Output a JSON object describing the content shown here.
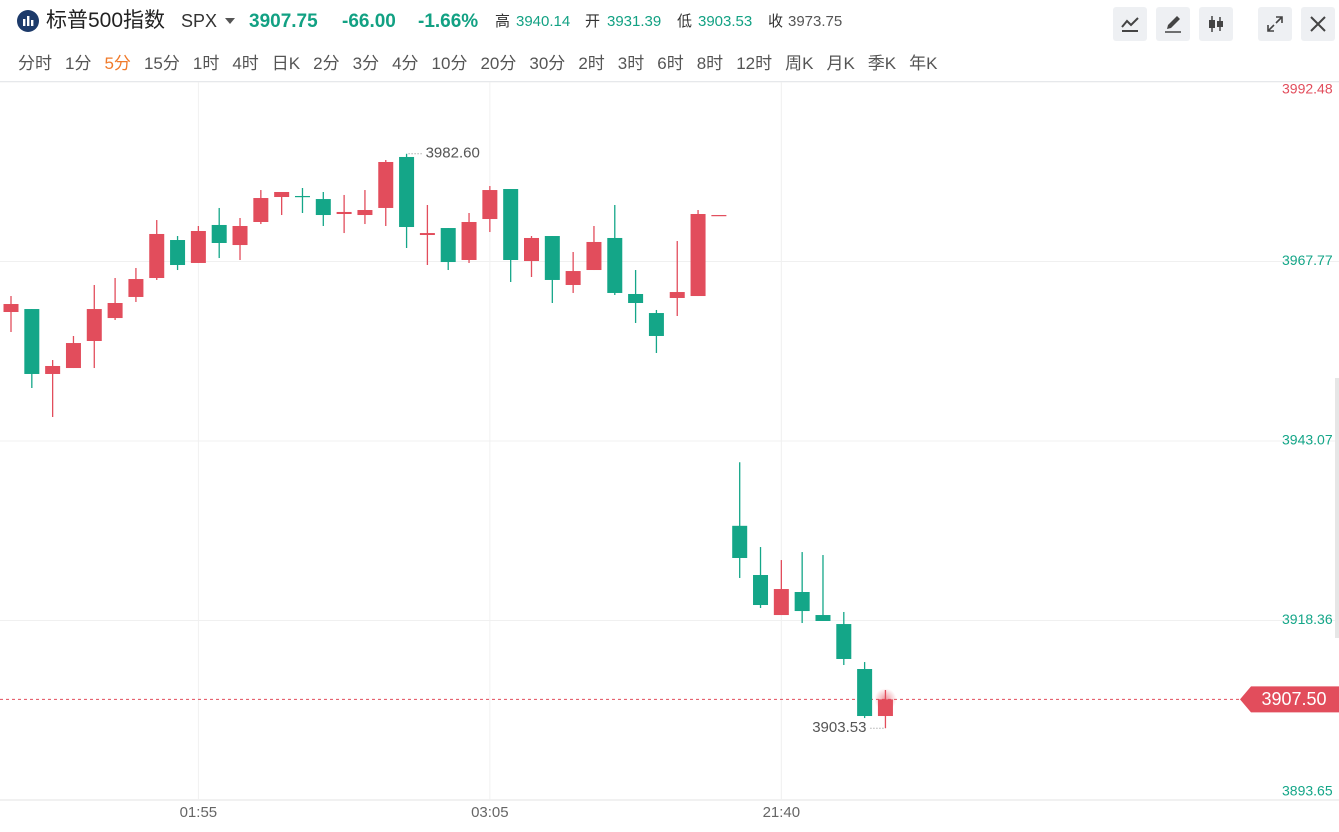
{
  "header": {
    "name": "标普500指数",
    "code": "SPX",
    "price": "3907.75",
    "change": "-66.00",
    "change_pct": "-1.66%",
    "high_label": "高",
    "high": "3940.14",
    "open_label": "开",
    "open": "3931.39",
    "low_label": "低",
    "low": "3903.53",
    "close_label": "收"
  },
  "timeframes": [
    "分时",
    "1分",
    "5分",
    "15分",
    "1时",
    "4时",
    "日K",
    "2分",
    "3分",
    "4分",
    "10分",
    "20分",
    "30分",
    "2时",
    "3时",
    "6时",
    "8时",
    "12时",
    "周K",
    "月K",
    "季K",
    "年K"
  ],
  "active_timeframe": 2,
  "chart_data": {
    "type": "candlestick",
    "categories": [
      null,
      null,
      null,
      null,
      null,
      null,
      null,
      null,
      null,
      "01:55",
      null,
      null,
      null,
      null,
      null,
      null,
      null,
      null,
      null,
      null,
      null,
      null,
      null,
      "03:05",
      null,
      null,
      null,
      null,
      null,
      null,
      null,
      null,
      null,
      null,
      null,
      null,
      null,
      "21:40",
      null,
      null,
      null,
      null,
      null
    ],
    "open": [
      3960.82,
      3961.23,
      3952.29,
      3953.11,
      3956.83,
      3959.99,
      3962.89,
      3965.5,
      3970.73,
      3967.57,
      3972.8,
      3970.04,
      3973.21,
      3976.65,
      3976.79,
      3976.37,
      3974.31,
      3974.17,
      3975.14,
      3982.16,
      3971.42,
      3972.38,
      3967.98,
      3973.62,
      3977.75,
      3967.84,
      3971.28,
      3964.54,
      3966.6,
      3971.01,
      3963.3,
      3960.68,
      3962.75,
      3963.02,
      3974.04,
      3931.39,
      3924.62,
      3919.11,
      3922.28,
      3919.11,
      3917.87,
      3911.68,
      3905.21
    ],
    "high": [
      3963.02,
      3961.23,
      3954.21,
      3957.52,
      3964.54,
      3965.5,
      3966.88,
      3973.48,
      3971.28,
      3972.66,
      3975.14,
      3973.76,
      3977.61,
      3977.34,
      3977.89,
      3977.34,
      3976.93,
      3977.61,
      3981.74,
      3982.6,
      3975.55,
      3972.38,
      3974.45,
      3978.16,
      3977.75,
      3971.28,
      3971.28,
      3969.08,
      3972.66,
      3975.55,
      3966.6,
      3961.1,
      3970.59,
      3974.86,
      3974.17,
      3940.14,
      3928.47,
      3926.68,
      3927.78,
      3927.37,
      3919.53,
      3912.64,
      3908.79
    ],
    "low": [
      3958.07,
      3950.36,
      3946.37,
      3953.11,
      3953.11,
      3959.72,
      3962.2,
      3965.23,
      3966.6,
      3967.57,
      3968.25,
      3967.98,
      3972.93,
      3974.17,
      3974.45,
      3972.66,
      3971.69,
      3972.93,
      3972.66,
      3969.63,
      3967.29,
      3966.6,
      3967.57,
      3971.83,
      3964.95,
      3965.64,
      3962.06,
      3963.44,
      3966.6,
      3963.16,
      3959.31,
      3955.18,
      3960.27,
      3963.02,
      3974.04,
      3924.21,
      3920.08,
      3919.11,
      3918.01,
      3918.29,
      3912.23,
      3904.93,
      3903.53
    ],
    "close": [
      3961.92,
      3952.29,
      3953.39,
      3956.55,
      3961.23,
      3962.06,
      3965.36,
      3971.56,
      3967.29,
      3971.97,
      3970.32,
      3972.66,
      3976.51,
      3977.34,
      3976.65,
      3974.17,
      3974.59,
      3974.86,
      3981.47,
      3972.52,
      3971.69,
      3967.7,
      3973.21,
      3977.61,
      3967.98,
      3971.01,
      3965.23,
      3966.46,
      3970.46,
      3963.44,
      3962.06,
      3957.52,
      3963.57,
      3974.31,
      3974.17,
      3926.96,
      3920.49,
      3922.69,
      3919.66,
      3918.29,
      3913.06,
      3905.21,
      3907.5
    ],
    "up_color": "#e24d5c",
    "down_color": "#14a688",
    "reference": 3973.75,
    "ylim": [
      3893.65,
      3992.48
    ],
    "yticks": [
      3893.65,
      3918.36,
      3943.07,
      3967.77,
      3992.48
    ],
    "grid": true,
    "last_price": {
      "value": 3907.5,
      "label": "3907.50"
    },
    "annotations": [
      {
        "value": 3982.6,
        "label": "3982.60",
        "index": 19,
        "side": "right"
      },
      {
        "value": 3903.53,
        "label": "3903.53",
        "index": 42,
        "side": "left"
      }
    ]
  }
}
